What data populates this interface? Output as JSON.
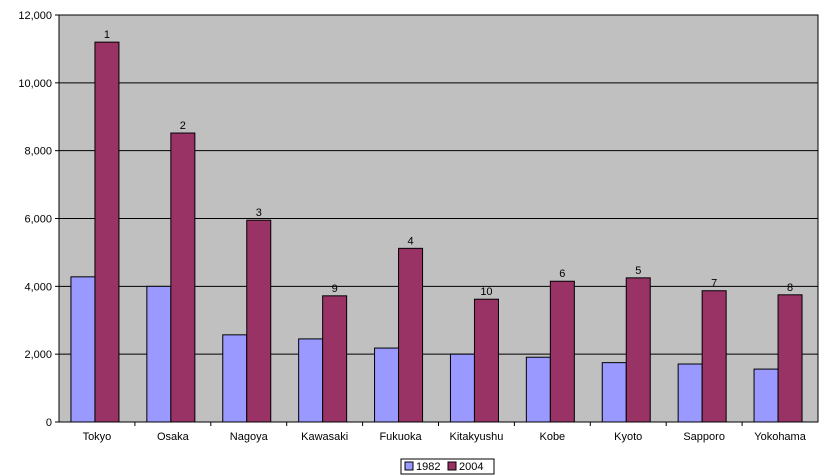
{
  "chart_data": {
    "type": "bar",
    "title": "",
    "xlabel": "",
    "ylabel": "",
    "ylim": [
      0,
      12000
    ],
    "yticks": [
      0,
      2000,
      4000,
      6000,
      8000,
      10000,
      12000
    ],
    "ytick_labels": [
      "0",
      "2,000",
      "4,000",
      "6,000",
      "8,000",
      "10,000",
      "12,000"
    ],
    "grid": true,
    "legend_position": "bottom-center",
    "categories": [
      "Tokyo",
      "Osaka",
      "Nagoya",
      "Kawasaki",
      "Fukuoka",
      "Kitakyushu",
      "Kobe",
      "Kyoto",
      "Sapporo",
      "Yokohama"
    ],
    "series": [
      {
        "name": "1982",
        "color": "#9999FF",
        "values": [
          4280,
          4000,
          2570,
          2450,
          2180,
          2000,
          1910,
          1750,
          1710,
          1560
        ]
      },
      {
        "name": "2004",
        "color": "#993366",
        "values": [
          11200,
          8520,
          5950,
          3720,
          5120,
          3620,
          4150,
          4250,
          3870,
          3750
        ],
        "data_labels": [
          "1",
          "2",
          "3",
          "9",
          "4",
          "10",
          "6",
          "5",
          "7",
          "8"
        ]
      }
    ],
    "plot_background": "#C0C0C0",
    "gridline_color": "#000000"
  }
}
